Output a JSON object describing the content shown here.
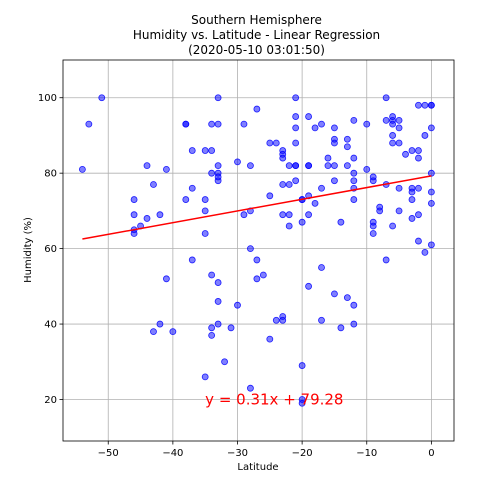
{
  "chart_data": {
    "type": "scatter",
    "title_lines": [
      "Southern Hemisphere",
      "Humidity vs. Latitude - Linear Regression",
      "(2020-05-10 03:01:50)"
    ],
    "xlabel": "Latitude",
    "ylabel": "Humidity (%)",
    "xlim": [
      -57,
      3.5
    ],
    "ylim": [
      9,
      110
    ],
    "xticks": [
      -50,
      -40,
      -30,
      -20,
      -10,
      0
    ],
    "yticks": [
      20,
      40,
      60,
      80,
      100
    ],
    "grid": true,
    "point_color": "#0000ff",
    "line_color": "#ff0000",
    "regression": {
      "slope": 0.31,
      "intercept": 79.28,
      "x_range": [
        -54,
        0
      ]
    },
    "annotation": {
      "text": "y = 0.31x + 79.28",
      "x": -35,
      "y": 20,
      "color": "#ff0000"
    },
    "points": [
      [
        -54,
        81
      ],
      [
        -53,
        93
      ],
      [
        -51,
        100
      ],
      [
        -46,
        73
      ],
      [
        -46,
        69
      ],
      [
        -46,
        65
      ],
      [
        -46,
        64
      ],
      [
        -45,
        66
      ],
      [
        -44,
        82
      ],
      [
        -44,
        68
      ],
      [
        -43,
        77
      ],
      [
        -43,
        38
      ],
      [
        -42,
        40
      ],
      [
        -42,
        69
      ],
      [
        -41,
        81
      ],
      [
        -41,
        52
      ],
      [
        -40,
        38
      ],
      [
        -38,
        93
      ],
      [
        -38,
        93
      ],
      [
        -38,
        73
      ],
      [
        -37,
        86
      ],
      [
        -37,
        76
      ],
      [
        -37,
        57
      ],
      [
        -35,
        86
      ],
      [
        -35,
        73
      ],
      [
        -35,
        70
      ],
      [
        -35,
        64
      ],
      [
        -35,
        26
      ],
      [
        -34,
        93
      ],
      [
        -34,
        86
      ],
      [
        -34,
        80
      ],
      [
        -34,
        53
      ],
      [
        -34,
        39
      ],
      [
        -34,
        37
      ],
      [
        -33,
        100
      ],
      [
        -33,
        93
      ],
      [
        -33,
        82
      ],
      [
        -33,
        80
      ],
      [
        -33,
        79
      ],
      [
        -33,
        78
      ],
      [
        -33,
        51
      ],
      [
        -33,
        46
      ],
      [
        -33,
        40
      ],
      [
        -32,
        30
      ],
      [
        -31,
        39
      ],
      [
        -30,
        83
      ],
      [
        -30,
        45
      ],
      [
        -29,
        93
      ],
      [
        -29,
        69
      ],
      [
        -28,
        82
      ],
      [
        -28,
        70
      ],
      [
        -28,
        60
      ],
      [
        -28,
        23
      ],
      [
        -27,
        97
      ],
      [
        -27,
        57
      ],
      [
        -27,
        52
      ],
      [
        -26,
        53
      ],
      [
        -25,
        88
      ],
      [
        -25,
        74
      ],
      [
        -25,
        36
      ],
      [
        -24,
        88
      ],
      [
        -24,
        41
      ],
      [
        -23,
        86
      ],
      [
        -23,
        85
      ],
      [
        -23,
        84
      ],
      [
        -23,
        77
      ],
      [
        -23,
        69
      ],
      [
        -23,
        42
      ],
      [
        -23,
        41
      ],
      [
        -22,
        82
      ],
      [
        -22,
        77
      ],
      [
        -22,
        69
      ],
      [
        -22,
        66
      ],
      [
        -21,
        100
      ],
      [
        -21,
        95
      ],
      [
        -21,
        92
      ],
      [
        -21,
        88
      ],
      [
        -21,
        82
      ],
      [
        -21,
        82
      ],
      [
        -21,
        78
      ],
      [
        -20,
        73
      ],
      [
        -20,
        73
      ],
      [
        -20,
        67
      ],
      [
        -20,
        29
      ],
      [
        -20,
        20
      ],
      [
        -20,
        19
      ],
      [
        -19,
        95
      ],
      [
        -19,
        82
      ],
      [
        -19,
        82
      ],
      [
        -19,
        74
      ],
      [
        -19,
        69
      ],
      [
        -19,
        50
      ],
      [
        -18,
        92
      ],
      [
        -18,
        72
      ],
      [
        -17,
        93
      ],
      [
        -17,
        76
      ],
      [
        -17,
        55
      ],
      [
        -17,
        41
      ],
      [
        -16,
        84
      ],
      [
        -16,
        82
      ],
      [
        -15,
        92
      ],
      [
        -15,
        89
      ],
      [
        -15,
        88
      ],
      [
        -15,
        82
      ],
      [
        -15,
        78
      ],
      [
        -15,
        48
      ],
      [
        -14,
        67
      ],
      [
        -14,
        39
      ],
      [
        -13,
        89
      ],
      [
        -13,
        87
      ],
      [
        -13,
        82
      ],
      [
        -13,
        47
      ],
      [
        -12,
        94
      ],
      [
        -12,
        84
      ],
      [
        -12,
        80
      ],
      [
        -12,
        78
      ],
      [
        -12,
        76
      ],
      [
        -12,
        73
      ],
      [
        -12,
        45
      ],
      [
        -12,
        40
      ],
      [
        -10,
        93
      ],
      [
        -10,
        81
      ],
      [
        -9,
        79
      ],
      [
        -9,
        78
      ],
      [
        -9,
        67
      ],
      [
        -9,
        66
      ],
      [
        -9,
        64
      ],
      [
        -8,
        71
      ],
      [
        -8,
        70
      ],
      [
        -7,
        100
      ],
      [
        -7,
        94
      ],
      [
        -7,
        77
      ],
      [
        -7,
        57
      ],
      [
        -6,
        95
      ],
      [
        -6,
        94
      ],
      [
        -6,
        93
      ],
      [
        -6,
        90
      ],
      [
        -6,
        88
      ],
      [
        -6,
        66
      ],
      [
        -5,
        94
      ],
      [
        -5,
        92
      ],
      [
        -5,
        88
      ],
      [
        -5,
        76
      ],
      [
        -5,
        70
      ],
      [
        -4,
        85
      ],
      [
        -3,
        86
      ],
      [
        -3,
        76
      ],
      [
        -3,
        75
      ],
      [
        -3,
        73
      ],
      [
        -3,
        68
      ],
      [
        -2,
        98
      ],
      [
        -2,
        86
      ],
      [
        -2,
        84
      ],
      [
        -2,
        76
      ],
      [
        -2,
        69
      ],
      [
        -2,
        62
      ],
      [
        -1,
        98
      ],
      [
        -1,
        90
      ],
      [
        -1,
        59
      ],
      [
        0,
        98
      ],
      [
        0,
        98
      ],
      [
        0,
        92
      ],
      [
        0,
        80
      ],
      [
        0,
        75
      ],
      [
        0,
        72
      ],
      [
        0,
        61
      ]
    ]
  }
}
